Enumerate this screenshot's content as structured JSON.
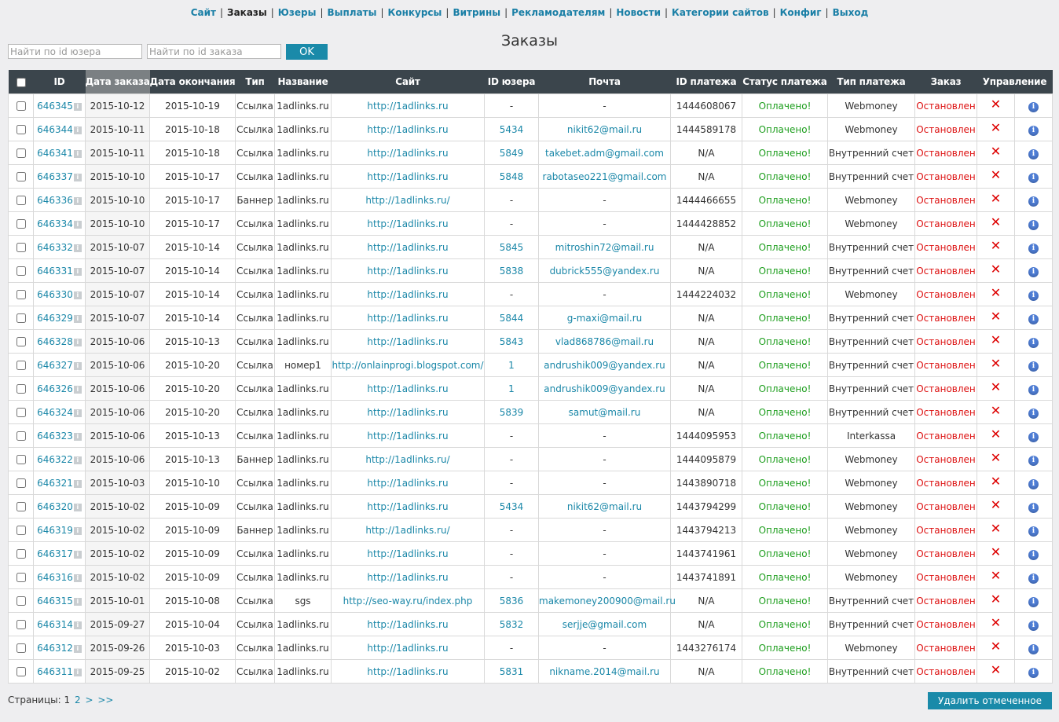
{
  "nav": [
    {
      "label": "Сайт",
      "current": false
    },
    {
      "label": "Заказы",
      "current": true
    },
    {
      "label": "Юзеры",
      "current": false
    },
    {
      "label": "Выплаты",
      "current": false
    },
    {
      "label": "Конкурсы",
      "current": false
    },
    {
      "label": "Витрины",
      "current": false
    },
    {
      "label": "Рекламодателям",
      "current": false
    },
    {
      "label": "Новости",
      "current": false
    },
    {
      "label": "Категории сайтов",
      "current": false
    },
    {
      "label": "Конфиг",
      "current": false
    },
    {
      "label": "Выход",
      "current": false
    }
  ],
  "nav_separator": "|",
  "page_title": "Заказы",
  "search": {
    "user_placeholder": "Найти по id юзера",
    "order_placeholder": "Найти по id заказа",
    "ok_label": "OK"
  },
  "table": {
    "columns": [
      "",
      "ID",
      "Дата заказа",
      "Дата окончания",
      "Тип",
      "Название",
      "Сайт",
      "ID юзера",
      "Почта",
      "ID платежа",
      "Статус платежа",
      "Тип платежа",
      "Заказ",
      "Управление"
    ],
    "sorted_column": "Дата заказа",
    "rows": [
      {
        "id": "646345",
        "date": "2015-10-12",
        "end": "2015-10-19",
        "type": "Ссылка",
        "name": "1adlinks.ru",
        "site": "http://1adlinks.ru",
        "user": "-",
        "email": "-",
        "payment_id": "1444608067",
        "status": "Оплачено!",
        "payment_type": "Webmoney",
        "order": "Остановлен"
      },
      {
        "id": "646344",
        "date": "2015-10-11",
        "end": "2015-10-18",
        "type": "Ссылка",
        "name": "1adlinks.ru",
        "site": "http://1adlinks.ru",
        "user": "5434",
        "email": "nikit62@mail.ru",
        "payment_id": "1444589178",
        "status": "Оплачено!",
        "payment_type": "Webmoney",
        "order": "Остановлен"
      },
      {
        "id": "646341",
        "date": "2015-10-11",
        "end": "2015-10-18",
        "type": "Ссылка",
        "name": "1adlinks.ru",
        "site": "http://1adlinks.ru",
        "user": "5849",
        "email": "takebet.adm@gmail.com",
        "payment_id": "N/A",
        "status": "Оплачено!",
        "payment_type": "Внутренний счет",
        "order": "Остановлен"
      },
      {
        "id": "646337",
        "date": "2015-10-10",
        "end": "2015-10-17",
        "type": "Ссылка",
        "name": "1adlinks.ru",
        "site": "http://1adlinks.ru",
        "user": "5848",
        "email": "rabotaseo221@gmail.com",
        "payment_id": "N/A",
        "status": "Оплачено!",
        "payment_type": "Внутренний счет",
        "order": "Остановлен"
      },
      {
        "id": "646336",
        "date": "2015-10-10",
        "end": "2015-10-17",
        "type": "Баннер",
        "name": "1adlinks.ru",
        "site": "http://1adlinks.ru/",
        "user": "-",
        "email": "-",
        "payment_id": "1444466655",
        "status": "Оплачено!",
        "payment_type": "Webmoney",
        "order": "Остановлен"
      },
      {
        "id": "646334",
        "date": "2015-10-10",
        "end": "2015-10-17",
        "type": "Ссылка",
        "name": "1adlinks.ru",
        "site": "http://1adlinks.ru",
        "user": "-",
        "email": "-",
        "payment_id": "1444428852",
        "status": "Оплачено!",
        "payment_type": "Webmoney",
        "order": "Остановлен"
      },
      {
        "id": "646332",
        "date": "2015-10-07",
        "end": "2015-10-14",
        "type": "Ссылка",
        "name": "1adlinks.ru",
        "site": "http://1adlinks.ru",
        "user": "5845",
        "email": "mitroshin72@mail.ru",
        "payment_id": "N/A",
        "status": "Оплачено!",
        "payment_type": "Внутренний счет",
        "order": "Остановлен"
      },
      {
        "id": "646331",
        "date": "2015-10-07",
        "end": "2015-10-14",
        "type": "Ссылка",
        "name": "1adlinks.ru",
        "site": "http://1adlinks.ru",
        "user": "5838",
        "email": "dubrick555@yandex.ru",
        "payment_id": "N/A",
        "status": "Оплачено!",
        "payment_type": "Внутренний счет",
        "order": "Остановлен"
      },
      {
        "id": "646330",
        "date": "2015-10-07",
        "end": "2015-10-14",
        "type": "Ссылка",
        "name": "1adlinks.ru",
        "site": "http://1adlinks.ru",
        "user": "-",
        "email": "-",
        "payment_id": "1444224032",
        "status": "Оплачено!",
        "payment_type": "Webmoney",
        "order": "Остановлен"
      },
      {
        "id": "646329",
        "date": "2015-10-07",
        "end": "2015-10-14",
        "type": "Ссылка",
        "name": "1adlinks.ru",
        "site": "http://1adlinks.ru",
        "user": "5844",
        "email": "g-maxi@mail.ru",
        "payment_id": "N/A",
        "status": "Оплачено!",
        "payment_type": "Внутренний счет",
        "order": "Остановлен"
      },
      {
        "id": "646328",
        "date": "2015-10-06",
        "end": "2015-10-13",
        "type": "Ссылка",
        "name": "1adlinks.ru",
        "site": "http://1adlinks.ru",
        "user": "5843",
        "email": "vlad868786@mail.ru",
        "payment_id": "N/A",
        "status": "Оплачено!",
        "payment_type": "Внутренний счет",
        "order": "Остановлен"
      },
      {
        "id": "646327",
        "date": "2015-10-06",
        "end": "2015-10-20",
        "type": "Ссылка",
        "name": "номер1",
        "site": "http://onlainprogi.blogspot.com/",
        "user": "1",
        "email": "andrushik009@yandex.ru",
        "payment_id": "N/A",
        "status": "Оплачено!",
        "payment_type": "Внутренний счет",
        "order": "Остановлен"
      },
      {
        "id": "646326",
        "date": "2015-10-06",
        "end": "2015-10-20",
        "type": "Ссылка",
        "name": "1adlinks.ru",
        "site": "http://1adlinks.ru",
        "user": "1",
        "email": "andrushik009@yandex.ru",
        "payment_id": "N/A",
        "status": "Оплачено!",
        "payment_type": "Внутренний счет",
        "order": "Остановлен"
      },
      {
        "id": "646324",
        "date": "2015-10-06",
        "end": "2015-10-20",
        "type": "Ссылка",
        "name": "1adlinks.ru",
        "site": "http://1adlinks.ru",
        "user": "5839",
        "email": "samut@mail.ru",
        "payment_id": "N/A",
        "status": "Оплачено!",
        "payment_type": "Внутренний счет",
        "order": "Остановлен"
      },
      {
        "id": "646323",
        "date": "2015-10-06",
        "end": "2015-10-13",
        "type": "Ссылка",
        "name": "1adlinks.ru",
        "site": "http://1adlinks.ru",
        "user": "-",
        "email": "-",
        "payment_id": "1444095953",
        "status": "Оплачено!",
        "payment_type": "Interkassa",
        "order": "Остановлен"
      },
      {
        "id": "646322",
        "date": "2015-10-06",
        "end": "2015-10-13",
        "type": "Баннер",
        "name": "1adlinks.ru",
        "site": "http://1adlinks.ru/",
        "user": "-",
        "email": "-",
        "payment_id": "1444095879",
        "status": "Оплачено!",
        "payment_type": "Webmoney",
        "order": "Остановлен"
      },
      {
        "id": "646321",
        "date": "2015-10-03",
        "end": "2015-10-10",
        "type": "Ссылка",
        "name": "1adlinks.ru",
        "site": "http://1adlinks.ru",
        "user": "-",
        "email": "-",
        "payment_id": "1443890718",
        "status": "Оплачено!",
        "payment_type": "Webmoney",
        "order": "Остановлен"
      },
      {
        "id": "646320",
        "date": "2015-10-02",
        "end": "2015-10-09",
        "type": "Ссылка",
        "name": "1adlinks.ru",
        "site": "http://1adlinks.ru",
        "user": "5434",
        "email": "nikit62@mail.ru",
        "payment_id": "1443794299",
        "status": "Оплачено!",
        "payment_type": "Webmoney",
        "order": "Остановлен"
      },
      {
        "id": "646319",
        "date": "2015-10-02",
        "end": "2015-10-09",
        "type": "Баннер",
        "name": "1adlinks.ru",
        "site": "http://1adlinks.ru/",
        "user": "-",
        "email": "-",
        "payment_id": "1443794213",
        "status": "Оплачено!",
        "payment_type": "Webmoney",
        "order": "Остановлен"
      },
      {
        "id": "646317",
        "date": "2015-10-02",
        "end": "2015-10-09",
        "type": "Ссылка",
        "name": "1adlinks.ru",
        "site": "http://1adlinks.ru",
        "user": "-",
        "email": "-",
        "payment_id": "1443741961",
        "status": "Оплачено!",
        "payment_type": "Webmoney",
        "order": "Остановлен"
      },
      {
        "id": "646316",
        "date": "2015-10-02",
        "end": "2015-10-09",
        "type": "Ссылка",
        "name": "1adlinks.ru",
        "site": "http://1adlinks.ru",
        "user": "-",
        "email": "-",
        "payment_id": "1443741891",
        "status": "Оплачено!",
        "payment_type": "Webmoney",
        "order": "Остановлен"
      },
      {
        "id": "646315",
        "date": "2015-10-01",
        "end": "2015-10-08",
        "type": "Ссылка",
        "name": "sgs",
        "site": "http://seo-way.ru/index.php",
        "user": "5836",
        "email": "makemoney200900@mail.ru",
        "payment_id": "N/A",
        "status": "Оплачено!",
        "payment_type": "Внутренний счет",
        "order": "Остановлен"
      },
      {
        "id": "646314",
        "date": "2015-09-27",
        "end": "2015-10-04",
        "type": "Ссылка",
        "name": "1adlinks.ru",
        "site": "http://1adlinks.ru",
        "user": "5832",
        "email": "serjje@gmail.com",
        "payment_id": "N/A",
        "status": "Оплачено!",
        "payment_type": "Внутренний счет",
        "order": "Остановлен"
      },
      {
        "id": "646312",
        "date": "2015-09-26",
        "end": "2015-10-03",
        "type": "Ссылка",
        "name": "1adlinks.ru",
        "site": "http://1adlinks.ru",
        "user": "-",
        "email": "-",
        "payment_id": "1443276174",
        "status": "Оплачено!",
        "payment_type": "Webmoney",
        "order": "Остановлен"
      },
      {
        "id": "646311",
        "date": "2015-09-25",
        "end": "2015-10-02",
        "type": "Ссылка",
        "name": "1adlinks.ru",
        "site": "http://1adlinks.ru",
        "user": "5831",
        "email": "nikname.2014@mail.ru",
        "payment_id": "N/A",
        "status": "Оплачено!",
        "payment_type": "Внутренний счет",
        "order": "Остановлен"
      }
    ]
  },
  "icons": {
    "id_info": "info-square-icon",
    "delete": "delete-x-icon",
    "info": "info-circle-icon"
  },
  "pagination": {
    "label": "Страницы:",
    "current": "1",
    "pages": [
      "2"
    ],
    "next": ">",
    "last": ">>"
  },
  "delete_selected_label": "Удалить отмеченное",
  "colors": {
    "header_bg": "#3b454c",
    "sorted_header_bg": "#7b8083",
    "link": "#1a87a8",
    "paid": "#1e9e1e",
    "stopped": "#dd1111",
    "button": "#1a8aa9"
  }
}
